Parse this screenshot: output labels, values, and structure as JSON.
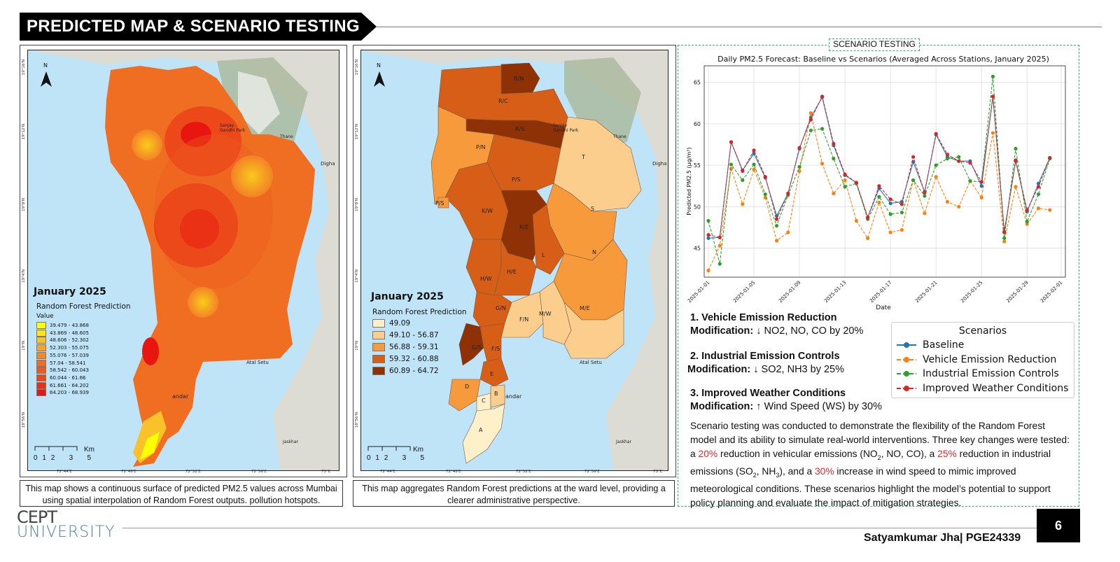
{
  "header": {
    "title": "PREDICTED MAP & SCENARIO TESTING"
  },
  "map1": {
    "legend_title": "January 2025",
    "legend_subtitle": "Random Forest Prediction",
    "legend_value_label": "Value",
    "legend_items": [
      {
        "label": "39.479 - 43.868",
        "color": "#ffff00"
      },
      {
        "label": "43.869 - 48.605",
        "color": "#fce31a"
      },
      {
        "label": "48.606 - 52.302",
        "color": "#f9c12a"
      },
      {
        "label": "52.303 - 55.075",
        "color": "#f6a42c"
      },
      {
        "label": "55.076 - 57.039",
        "color": "#f38828"
      },
      {
        "label": "57.04 - 58.541",
        "color": "#f06e22"
      },
      {
        "label": "58.542 - 60.043",
        "color": "#ee5a1e"
      },
      {
        "label": "60.044 - 61.66",
        "color": "#ec4619"
      },
      {
        "label": "61.661 - 64.202",
        "color": "#ea2f15"
      },
      {
        "label": "64.203 - 68.939",
        "color": "#e81510"
      }
    ],
    "scale_label": "Km",
    "scale_ticks": [
      "0",
      "1",
      "2",
      "3",
      "5"
    ],
    "north": "N",
    "place_labels": [
      "Sanjay Gandhi Park",
      "Thane",
      "Digha",
      "Atal Setu",
      "andar",
      "Jaskhar"
    ],
    "lon_ticks": [
      "72°44'E",
      "72°48'E",
      "72°52'E",
      "72°56'E",
      "73°E"
    ],
    "lat_ticks": [
      "19°16'N",
      "19°12'N",
      "19°8'N",
      "19°4'N",
      "19°N",
      "18°56'N"
    ],
    "caption": "This map shows a continuous surface of predicted PM2.5 values across Mumbai using spatial interpolation of Random Forest outputs. pollution hotspots."
  },
  "map2": {
    "legend_title": "January 2025",
    "legend_subtitle": "Random Forest Prediction",
    "legend_items": [
      {
        "label": "49.09",
        "color": "#fef0c9"
      },
      {
        "label": "49.10 - 56.87",
        "color": "#fbce8d"
      },
      {
        "label": "56.88 - 59.31",
        "color": "#f79a3c"
      },
      {
        "label": "59.32 - 60.88",
        "color": "#d65e16"
      },
      {
        "label": "60.89 - 64.72",
        "color": "#8e3106"
      }
    ],
    "scale_label": "Km",
    "scale_ticks": [
      "0",
      "1",
      "2",
      "3",
      "5"
    ],
    "north": "N",
    "wards": [
      "R/N",
      "R/C",
      "R/S",
      "P/N",
      "T",
      "P/S",
      "K/W",
      "S",
      "K/E",
      "L",
      "N",
      "H/W",
      "H/E",
      "G/N",
      "F/N",
      "M/W",
      "M/E",
      "G/S",
      "F/S",
      "E",
      "D",
      "C",
      "B",
      "A",
      "P/S"
    ],
    "place_labels": [
      "Sanjay Gandhi Park",
      "Thane",
      "Digha",
      "Atal Setu",
      "andar",
      "Jaskhar"
    ],
    "lon_ticks": [
      "72°44'E",
      "72°48'E",
      "72°52'E",
      "72°56'E",
      "73°E"
    ],
    "lat_ticks": [
      "19°16'N",
      "19°12'N",
      "19°8'N",
      "19°4'N",
      "19°N",
      "18°56'N"
    ],
    "caption": "This map aggregates Random Forest predictions at the ward level, providing a clearer administrative perspective."
  },
  "scenario": {
    "tag": "SCENARIO TESTING",
    "items": [
      {
        "heading": "1. Vehicle Emission Reduction",
        "mod_label": "Modification:",
        "mod_text": "↓ NO2, NO, CO by 20%"
      },
      {
        "heading": "2. Industrial Emission Controls",
        "mod_label": "Modification:",
        "mod_text": "↓ SO2, NH3 by 25%"
      },
      {
        "heading": "3. Improved Weather Conditions",
        "mod_label": "Modification:",
        "mod_text": "↑ Wind Speed (WS) by 30%"
      }
    ],
    "paragraph": {
      "p1": "Scenario testing was conducted to demonstrate the flexibility of the Random Forest model and its ability to simulate real-world interventions. Three key changes were tested: a ",
      "pct1": "20%",
      "p2": " reduction in vehicular emissions (NO",
      "sub1": "2",
      "p3": ", NO, CO), a ",
      "pct2": "25%",
      "p4": " reduction in industrial emissions (SO",
      "sub2": "2",
      "p5": ", NH",
      "sub3": "3",
      "p6": "), and a ",
      "pct3": "30%",
      "p7": " increase in wind speed to mimic improved meteorological conditions. These scenarios highlight the model’s potential to support policy planning and evaluate the impact of mitigation strategies."
    }
  },
  "chart_data": {
    "type": "line",
    "title": "Daily PM2.5 Forecast: Baseline vs Scenarios (Averaged Across Stations, January 2025)",
    "xlabel": "Date",
    "ylabel": "Predicted PM2.5 (µg/m³)",
    "ylim": [
      41.5,
      67
    ],
    "yticks": [
      45,
      50,
      55,
      60,
      65
    ],
    "x": [
      "2025-01-01",
      "2025-01-02",
      "2025-01-03",
      "2025-01-04",
      "2025-01-05",
      "2025-01-06",
      "2025-01-07",
      "2025-01-08",
      "2025-01-09",
      "2025-01-10",
      "2025-01-11",
      "2025-01-12",
      "2025-01-13",
      "2025-01-14",
      "2025-01-15",
      "2025-01-16",
      "2025-01-17",
      "2025-01-18",
      "2025-01-19",
      "2025-01-20",
      "2025-01-21",
      "2025-01-22",
      "2025-01-23",
      "2025-01-24",
      "2025-01-25",
      "2025-01-26",
      "2025-01-27",
      "2025-01-28",
      "2025-01-29",
      "2025-01-30",
      "2025-01-31"
    ],
    "xticks": [
      "2025-01-01",
      "2025-01-05",
      "2025-01-09",
      "2025-01-13",
      "2025-01-17",
      "2025-01-21",
      "2025-01-25",
      "2025-01-29",
      "2025-02-01"
    ],
    "grid": true,
    "legend_title": "Scenarios",
    "legend_position": "center-right",
    "series": [
      {
        "name": "Baseline",
        "color": "#1f77b4",
        "style": "solid",
        "values": [
          46.2,
          46.3,
          57.8,
          54.4,
          56.4,
          53.5,
          48.9,
          51.6,
          57.0,
          60.8,
          63.2,
          57.4,
          53.8,
          52.9,
          48.7,
          52.2,
          50.4,
          50.6,
          55.4,
          51.8,
          58.7,
          56.0,
          55.5,
          55.5,
          52.5,
          63.3,
          47.0,
          55.5,
          49.4,
          52.8,
          55.9
        ]
      },
      {
        "name": "Vehicle Emission Reduction",
        "color": "#ff7f0e",
        "style": "dashed",
        "values": [
          42.3,
          45.3,
          54.6,
          50.3,
          54.5,
          51.1,
          45.9,
          46.9,
          54.3,
          61.3,
          55.2,
          51.6,
          53.2,
          48.3,
          46.2,
          50.5,
          46.9,
          47.2,
          53.2,
          49.2,
          53.6,
          50.6,
          50.0,
          53.1,
          51.1,
          58.9,
          45.8,
          52.4,
          47.9,
          49.8,
          49.6
        ]
      },
      {
        "name": "Industrial Emission Controls",
        "color": "#2ca02c",
        "style": "dashed",
        "values": [
          48.3,
          43.1,
          55.1,
          53.2,
          55.1,
          51.5,
          47.7,
          51.4,
          54.8,
          59.2,
          59.4,
          55.8,
          52.4,
          52.8,
          48.5,
          51.2,
          49.1,
          49.3,
          53.2,
          51.3,
          55.0,
          55.8,
          56.0,
          53.1,
          53.0,
          65.7,
          46.2,
          57.0,
          48.2,
          51.5,
          55.8
        ]
      },
      {
        "name": "Improved Weather Conditions",
        "color": "#d62728",
        "style": "dashed",
        "values": [
          46.6,
          46.3,
          57.8,
          54.3,
          56.8,
          53.6,
          48.5,
          51.6,
          57.1,
          60.5,
          63.3,
          57.6,
          53.9,
          52.9,
          48.7,
          52.5,
          50.9,
          50.3,
          56.0,
          51.7,
          58.8,
          56.3,
          55.5,
          55.3,
          53.0,
          63.3,
          46.9,
          55.6,
          49.6,
          52.4,
          55.9
        ]
      }
    ]
  },
  "branding": {
    "logo_line1": "CEPT",
    "logo_line2": "UNIVERSITY",
    "author": "Satyamkumar Jha| PGE24339",
    "page": "6"
  }
}
